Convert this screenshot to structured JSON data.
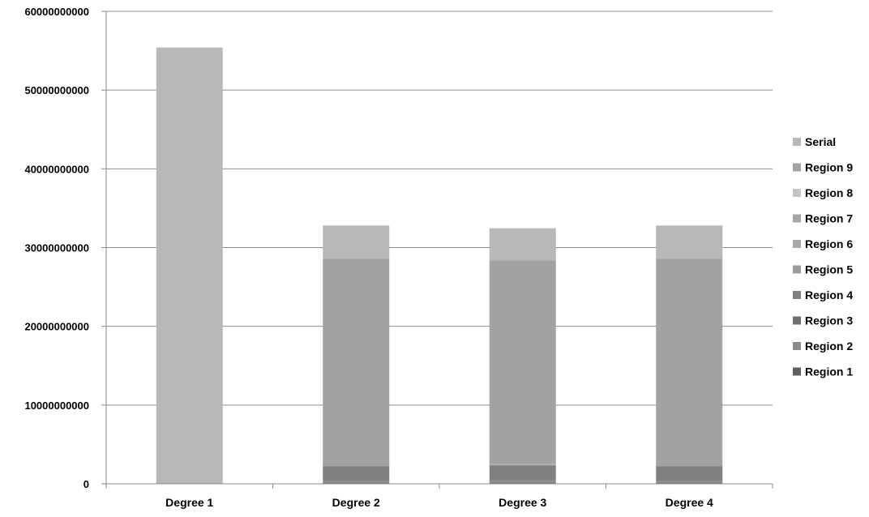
{
  "chart_data": {
    "type": "bar",
    "stacked": true,
    "categories": [
      "Degree 1",
      "Degree 2",
      "Degree 3",
      "Degree 4"
    ],
    "ylim": [
      0,
      60000000000
    ],
    "yticks": [
      "0",
      "10000000000",
      "20000000000",
      "30000000000",
      "40000000000",
      "50000000000",
      "60000000000"
    ],
    "ytick_values": [
      0,
      10000000000,
      20000000000,
      30000000000,
      40000000000,
      50000000000,
      60000000000
    ],
    "grid": true,
    "legend_position": "right",
    "series": [
      {
        "name": "Region 1",
        "color": "#606060",
        "values": [
          0,
          100000000,
          100000000,
          100000000
        ]
      },
      {
        "name": "Region 2",
        "color": "#8c8c8c",
        "values": [
          0,
          250000000,
          300000000,
          250000000
        ]
      },
      {
        "name": "Region 3",
        "color": "#6e6e6e",
        "values": [
          0,
          50000000,
          50000000,
          50000000
        ]
      },
      {
        "name": "Region 4",
        "color": "#808080",
        "values": [
          0,
          1850000000,
          1900000000,
          1850000000
        ]
      },
      {
        "name": "Region 5",
        "color": "#9c9c9c",
        "values": [
          0,
          0,
          50000000,
          0
        ]
      },
      {
        "name": "Region 6",
        "color": "#a8a8a8",
        "values": [
          0,
          0,
          150000000,
          0
        ]
      },
      {
        "name": "Region 7",
        "color": "#a6a6a6",
        "values": [
          0,
          0,
          0,
          0
        ]
      },
      {
        "name": "Region 8",
        "color": "#c4c4c4",
        "values": [
          0,
          0,
          0,
          0
        ]
      },
      {
        "name": "Region 9",
        "color": "#a2a2a2",
        "values": [
          0,
          26350000000,
          25800000000,
          26350000000
        ]
      },
      {
        "name": "Serial",
        "color": "#b8b8b8",
        "values": [
          55400000000,
          4200000000,
          4100000000,
          4200000000
        ]
      }
    ]
  }
}
